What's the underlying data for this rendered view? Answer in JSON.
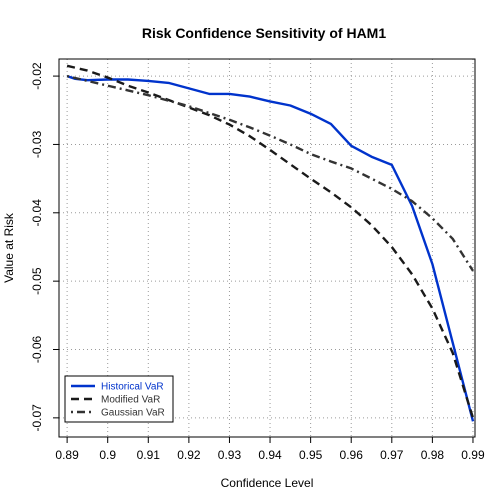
{
  "chart_data": {
    "type": "line",
    "title": "Risk Confidence Sensitivity of HAM1",
    "xlabel": "Confidence Level",
    "ylabel": "Value at Risk",
    "xlim": [
      0.888,
      0.9905
    ],
    "ylim": [
      -0.0728,
      -0.0175
    ],
    "x_ticks": [
      "0.89",
      "0.9",
      "0.91",
      "0.92",
      "0.93",
      "0.94",
      "0.95",
      "0.96",
      "0.97",
      "0.98",
      "0.99"
    ],
    "y_ticks": [
      "-0.02",
      "-0.03",
      "-0.04",
      "-0.05",
      "-0.06",
      "-0.07"
    ],
    "grid": true,
    "legend_position": "bottom-left",
    "series": [
      {
        "name": "Historical VaR",
        "color": "#0033cc",
        "style": "solid",
        "points": [
          [
            0.89,
            -0.02
          ],
          [
            0.892,
            -0.0204
          ],
          [
            0.895,
            -0.0206
          ],
          [
            0.9,
            -0.0205
          ],
          [
            0.905,
            -0.0205
          ],
          [
            0.91,
            -0.0207
          ],
          [
            0.915,
            -0.021
          ],
          [
            0.92,
            -0.0218
          ],
          [
            0.925,
            -0.0226
          ],
          [
            0.93,
            -0.0226
          ],
          [
            0.935,
            -0.023
          ],
          [
            0.94,
            -0.0237
          ],
          [
            0.945,
            -0.0243
          ],
          [
            0.95,
            -0.0255
          ],
          [
            0.955,
            -0.027
          ],
          [
            0.96,
            -0.0302
          ],
          [
            0.965,
            -0.0318
          ],
          [
            0.97,
            -0.033
          ],
          [
            0.975,
            -0.039
          ],
          [
            0.98,
            -0.0475
          ],
          [
            0.985,
            -0.059
          ],
          [
            0.99,
            -0.0705
          ]
        ]
      },
      {
        "name": "Modified VaR",
        "color": "#1a1a1a",
        "style": "dashed",
        "points": [
          [
            0.89,
            -0.0185
          ],
          [
            0.895,
            -0.0192
          ],
          [
            0.9,
            -0.0202
          ],
          [
            0.905,
            -0.0214
          ],
          [
            0.91,
            -0.0224
          ],
          [
            0.915,
            -0.0235
          ],
          [
            0.92,
            -0.0246
          ],
          [
            0.925,
            -0.0257
          ],
          [
            0.93,
            -0.0271
          ],
          [
            0.935,
            -0.0288
          ],
          [
            0.94,
            -0.0308
          ],
          [
            0.945,
            -0.0329
          ],
          [
            0.95,
            -0.035
          ],
          [
            0.955,
            -0.037
          ],
          [
            0.96,
            -0.0392
          ],
          [
            0.965,
            -0.0418
          ],
          [
            0.97,
            -0.045
          ],
          [
            0.975,
            -0.049
          ],
          [
            0.98,
            -0.054
          ],
          [
            0.985,
            -0.0605
          ],
          [
            0.99,
            -0.07
          ]
        ]
      },
      {
        "name": "Gaussian VaR",
        "color": "#333333",
        "style": "dotdash",
        "points": [
          [
            0.89,
            -0.02
          ],
          [
            0.895,
            -0.0207
          ],
          [
            0.9,
            -0.0214
          ],
          [
            0.905,
            -0.0221
          ],
          [
            0.91,
            -0.0228
          ],
          [
            0.915,
            -0.0236
          ],
          [
            0.92,
            -0.0244
          ],
          [
            0.925,
            -0.0254
          ],
          [
            0.93,
            -0.0264
          ],
          [
            0.935,
            -0.0275
          ],
          [
            0.94,
            -0.0287
          ],
          [
            0.945,
            -0.03
          ],
          [
            0.95,
            -0.0314
          ],
          [
            0.955,
            -0.0325
          ],
          [
            0.96,
            -0.0335
          ],
          [
            0.965,
            -0.035
          ],
          [
            0.97,
            -0.0365
          ],
          [
            0.975,
            -0.0383
          ],
          [
            0.98,
            -0.0408
          ],
          [
            0.985,
            -0.0438
          ],
          [
            0.99,
            -0.0485
          ]
        ]
      }
    ]
  }
}
